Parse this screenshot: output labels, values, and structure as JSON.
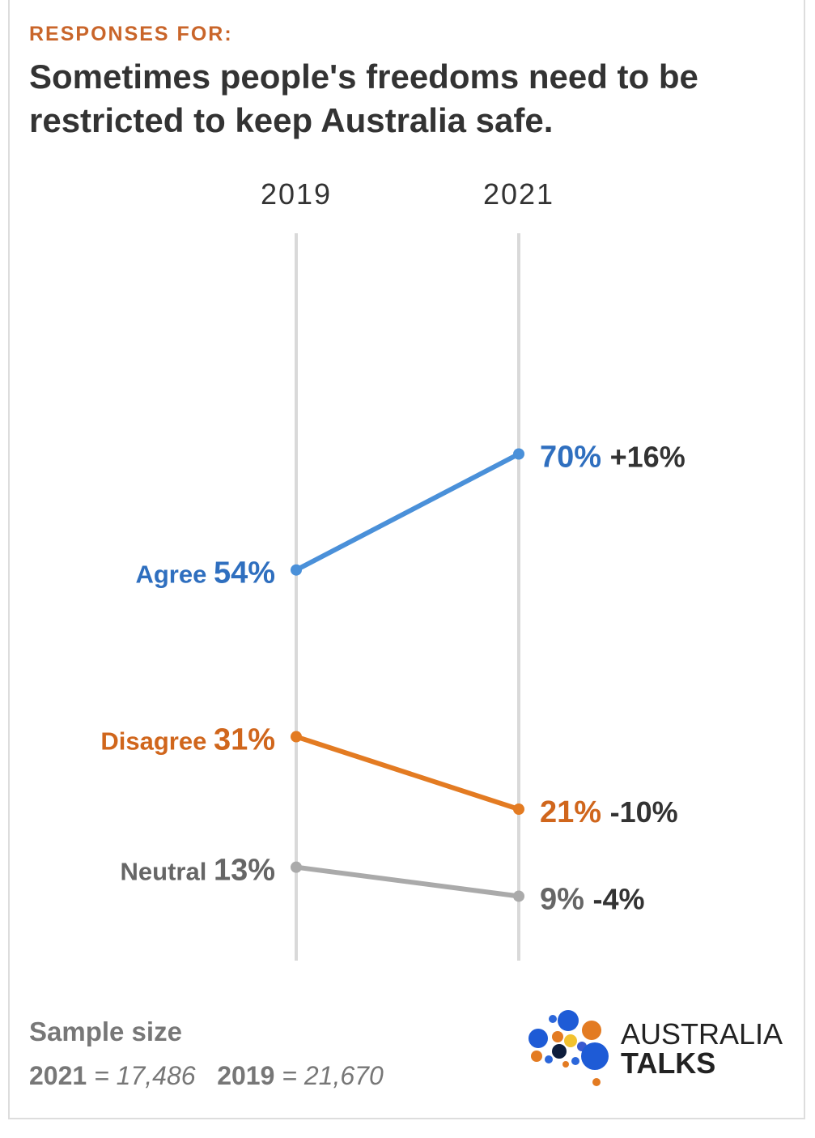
{
  "header": {
    "kicker": "RESPONSES FOR:",
    "title": "Sometimes people's freedoms need to be restricted to keep Australia safe."
  },
  "colors": {
    "kicker": "#c9652a",
    "agree": "#4a90d9",
    "agree_text": "#2f6fbf",
    "disagree": "#e37b22",
    "disagree_text": "#d0661c",
    "neutral": "#aaaaaa",
    "neutral_text": "#666666",
    "axis": "#d9d9d9",
    "change_text": "#333333"
  },
  "chart_data": {
    "type": "line",
    "x": [
      "2019",
      "2021"
    ],
    "series": [
      {
        "name": "Agree",
        "values": [
          54,
          70
        ],
        "labels": [
          "54%",
          "70%"
        ],
        "change": "+16%"
      },
      {
        "name": "Disagree",
        "values": [
          31,
          21
        ],
        "labels": [
          "31%",
          "21%"
        ],
        "change": "-10%"
      },
      {
        "name": "Neutral",
        "values": [
          13,
          9
        ],
        "labels": [
          "13%",
          "9%"
        ],
        "change": "-4%"
      }
    ],
    "ylim": [
      0,
      100
    ],
    "grid": false
  },
  "footer": {
    "sample_label": "Sample size",
    "sample_2021_year": "2021",
    "sample_2021_value": "= 17,486",
    "sample_2019_year": "2019",
    "sample_2019_value": "= 21,670"
  },
  "logo": {
    "line1": "AUSTRALIA",
    "line2": "TALKS",
    "icon": "australia-talks-dots-logo"
  }
}
